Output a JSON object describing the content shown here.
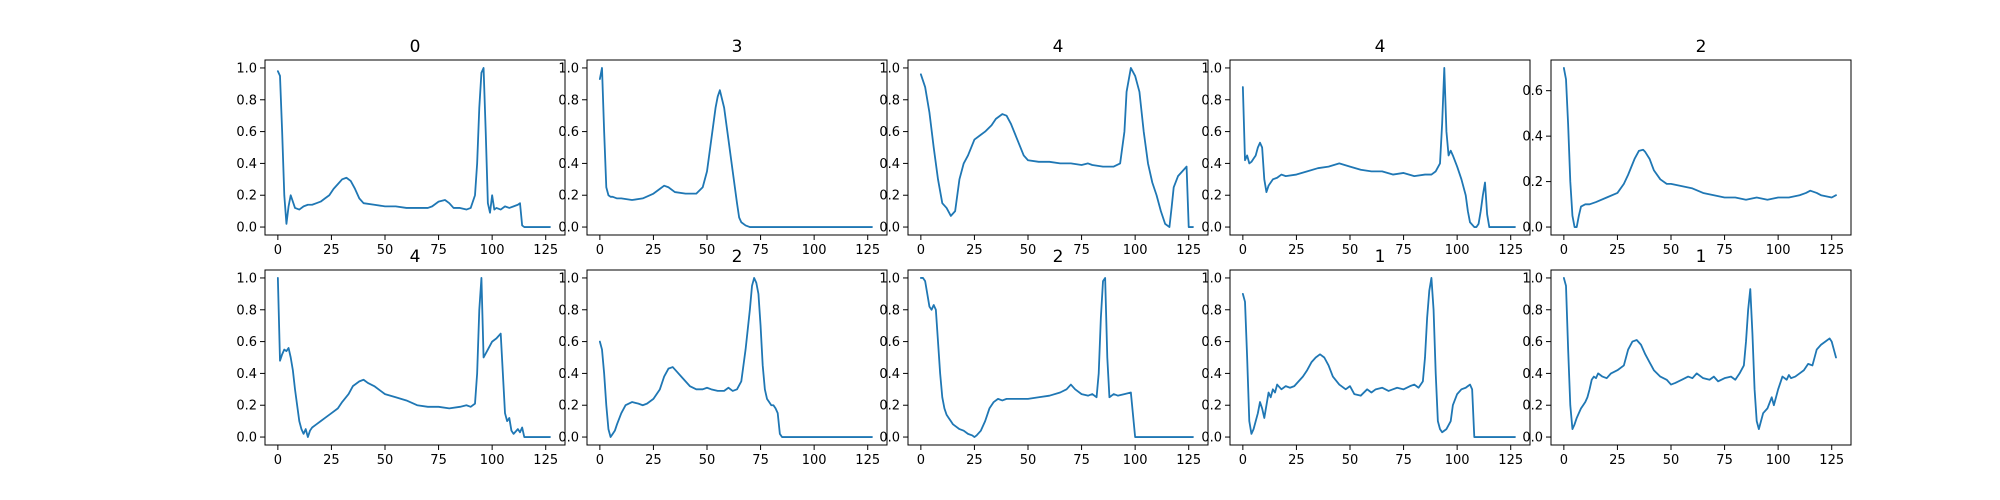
{
  "theme": {
    "line_color": "#1f77b4"
  },
  "chart_data": [
    {
      "type": "line",
      "title": "0",
      "xlim": [
        -6,
        134
      ],
      "ylim": [
        -0.05,
        1.05
      ],
      "xticks": [
        0,
        25,
        50,
        75,
        100,
        125
      ],
      "yticks": [
        0.0,
        0.2,
        0.4,
        0.6,
        0.8,
        1.0
      ],
      "x": [
        0,
        1,
        2,
        3,
        4,
        5,
        6,
        8,
        10,
        12,
        14,
        16,
        18,
        20,
        22,
        24,
        26,
        28,
        30,
        32,
        34,
        36,
        38,
        40,
        45,
        50,
        55,
        60,
        65,
        70,
        72,
        75,
        78,
        80,
        82,
        85,
        88,
        90,
        92,
        93,
        94,
        95,
        96,
        97,
        98,
        99,
        100,
        101,
        102,
        104,
        106,
        108,
        110,
        112,
        113,
        114,
        115,
        120,
        125,
        127
      ],
      "y": [
        0.98,
        0.95,
        0.6,
        0.2,
        0.02,
        0.13,
        0.2,
        0.12,
        0.11,
        0.13,
        0.14,
        0.14,
        0.15,
        0.16,
        0.18,
        0.2,
        0.24,
        0.27,
        0.3,
        0.31,
        0.29,
        0.24,
        0.18,
        0.15,
        0.14,
        0.13,
        0.13,
        0.12,
        0.12,
        0.12,
        0.13,
        0.16,
        0.17,
        0.15,
        0.12,
        0.12,
        0.11,
        0.12,
        0.2,
        0.4,
        0.75,
        0.97,
        1.0,
        0.6,
        0.15,
        0.09,
        0.2,
        0.11,
        0.12,
        0.11,
        0.13,
        0.12,
        0.13,
        0.14,
        0.15,
        0.01,
        0.0,
        0.0,
        0.0,
        0.0
      ]
    },
    {
      "type": "line",
      "title": "3",
      "xlim": [
        -6,
        134
      ],
      "ylim": [
        -0.05,
        1.05
      ],
      "xticks": [
        0,
        25,
        50,
        75,
        100,
        125
      ],
      "yticks": [
        0.0,
        0.2,
        0.4,
        0.6,
        0.8,
        1.0
      ],
      "x": [
        0,
        1,
        2,
        3,
        4,
        5,
        6,
        8,
        10,
        15,
        20,
        25,
        28,
        30,
        32,
        35,
        40,
        45,
        48,
        50,
        52,
        54,
        55,
        56,
        58,
        60,
        62,
        64,
        65,
        66,
        68,
        70,
        75,
        80,
        90,
        100,
        110,
        120,
        127
      ],
      "y": [
        0.93,
        1.0,
        0.6,
        0.25,
        0.2,
        0.19,
        0.19,
        0.18,
        0.18,
        0.17,
        0.18,
        0.21,
        0.24,
        0.26,
        0.25,
        0.22,
        0.21,
        0.21,
        0.25,
        0.35,
        0.55,
        0.75,
        0.82,
        0.86,
        0.75,
        0.55,
        0.35,
        0.15,
        0.06,
        0.03,
        0.01,
        0.0,
        0.0,
        0.0,
        0.0,
        0.0,
        0.0,
        0.0,
        0.0
      ]
    },
    {
      "type": "line",
      "title": "4",
      "xlim": [
        -6,
        134
      ],
      "ylim": [
        -0.05,
        1.05
      ],
      "xticks": [
        0,
        25,
        50,
        75,
        100,
        125
      ],
      "yticks": [
        0.0,
        0.2,
        0.4,
        0.6,
        0.8,
        1.0
      ],
      "x": [
        0,
        2,
        4,
        6,
        8,
        10,
        12,
        14,
        16,
        18,
        20,
        22,
        25,
        28,
        30,
        33,
        35,
        38,
        40,
        42,
        45,
        48,
        50,
        55,
        60,
        65,
        70,
        75,
        78,
        80,
        85,
        90,
        93,
        95,
        96,
        98,
        100,
        102,
        104,
        106,
        108,
        110,
        112,
        114,
        116,
        117,
        118,
        120,
        122,
        124,
        125,
        127
      ],
      "y": [
        0.96,
        0.88,
        0.72,
        0.5,
        0.3,
        0.15,
        0.12,
        0.07,
        0.1,
        0.3,
        0.4,
        0.45,
        0.55,
        0.58,
        0.6,
        0.64,
        0.68,
        0.71,
        0.7,
        0.65,
        0.55,
        0.45,
        0.42,
        0.41,
        0.41,
        0.4,
        0.4,
        0.39,
        0.4,
        0.39,
        0.38,
        0.38,
        0.4,
        0.6,
        0.85,
        1.0,
        0.95,
        0.85,
        0.6,
        0.4,
        0.28,
        0.2,
        0.1,
        0.02,
        0.0,
        0.12,
        0.25,
        0.32,
        0.35,
        0.38,
        0.0,
        0.0
      ]
    },
    {
      "type": "line",
      "title": "4",
      "xlim": [
        -6,
        134
      ],
      "ylim": [
        -0.05,
        1.05
      ],
      "xticks": [
        0,
        25,
        50,
        75,
        100,
        125
      ],
      "yticks": [
        0.0,
        0.2,
        0.4,
        0.6,
        0.8,
        1.0
      ],
      "x": [
        0,
        1,
        2,
        3,
        4,
        5,
        6,
        7,
        8,
        9,
        10,
        11,
        12,
        13,
        14,
        16,
        18,
        20,
        25,
        30,
        35,
        40,
        45,
        50,
        55,
        60,
        65,
        70,
        75,
        80,
        85,
        88,
        90,
        92,
        93,
        94,
        95,
        96,
        97,
        98,
        100,
        102,
        104,
        105,
        106,
        108,
        109,
        110,
        111,
        112,
        113,
        114,
        115,
        120,
        125,
        127
      ],
      "y": [
        0.88,
        0.42,
        0.45,
        0.4,
        0.41,
        0.43,
        0.45,
        0.5,
        0.53,
        0.5,
        0.3,
        0.22,
        0.26,
        0.28,
        0.3,
        0.31,
        0.33,
        0.32,
        0.33,
        0.35,
        0.37,
        0.38,
        0.4,
        0.38,
        0.36,
        0.35,
        0.35,
        0.33,
        0.34,
        0.32,
        0.33,
        0.33,
        0.35,
        0.4,
        0.65,
        1.0,
        0.6,
        0.45,
        0.48,
        0.45,
        0.38,
        0.3,
        0.2,
        0.1,
        0.03,
        0.0,
        0.0,
        0.02,
        0.1,
        0.2,
        0.28,
        0.08,
        0.0,
        0.0,
        0.0,
        0.0
      ]
    },
    {
      "type": "line",
      "title": "2",
      "xlim": [
        -6,
        134
      ],
      "ylim": [
        -0.035,
        0.735
      ],
      "xticks": [
        0,
        25,
        50,
        75,
        100,
        125
      ],
      "yticks": [
        0.0,
        0.2,
        0.4,
        0.6
      ],
      "x": [
        0,
        1,
        2,
        3,
        4,
        5,
        6,
        7,
        8,
        10,
        12,
        15,
        20,
        25,
        28,
        30,
        33,
        35,
        37,
        38,
        40,
        42,
        45,
        48,
        50,
        55,
        60,
        65,
        70,
        75,
        80,
        85,
        90,
        95,
        100,
        105,
        110,
        113,
        115,
        118,
        120,
        125,
        127
      ],
      "y": [
        0.7,
        0.65,
        0.45,
        0.2,
        0.05,
        0.0,
        0.0,
        0.05,
        0.09,
        0.1,
        0.1,
        0.11,
        0.13,
        0.15,
        0.19,
        0.23,
        0.3,
        0.335,
        0.34,
        0.33,
        0.3,
        0.25,
        0.21,
        0.19,
        0.19,
        0.18,
        0.17,
        0.15,
        0.14,
        0.13,
        0.13,
        0.12,
        0.13,
        0.12,
        0.13,
        0.13,
        0.14,
        0.15,
        0.16,
        0.15,
        0.14,
        0.13,
        0.14
      ]
    },
    {
      "type": "line",
      "title": "4",
      "xlim": [
        -6,
        134
      ],
      "ylim": [
        -0.05,
        1.05
      ],
      "xticks": [
        0,
        25,
        50,
        75,
        100,
        125
      ],
      "yticks": [
        0.0,
        0.2,
        0.4,
        0.6,
        0.8,
        1.0
      ],
      "x": [
        0,
        1,
        2,
        3,
        4,
        5,
        6,
        7,
        8,
        9,
        10,
        11,
        12,
        13,
        14,
        15,
        16,
        18,
        20,
        22,
        25,
        28,
        30,
        33,
        35,
        38,
        40,
        42,
        45,
        48,
        50,
        55,
        60,
        65,
        70,
        75,
        80,
        85,
        88,
        90,
        92,
        93,
        94,
        95,
        96,
        98,
        100,
        102,
        104,
        105,
        106,
        107,
        108,
        109,
        110,
        112,
        113,
        114,
        115,
        120,
        125,
        127
      ],
      "y": [
        1.0,
        0.48,
        0.52,
        0.55,
        0.54,
        0.56,
        0.5,
        0.42,
        0.3,
        0.2,
        0.1,
        0.05,
        0.02,
        0.05,
        0.0,
        0.04,
        0.06,
        0.08,
        0.1,
        0.12,
        0.15,
        0.18,
        0.22,
        0.27,
        0.32,
        0.35,
        0.36,
        0.34,
        0.32,
        0.29,
        0.27,
        0.25,
        0.23,
        0.2,
        0.19,
        0.19,
        0.18,
        0.19,
        0.2,
        0.19,
        0.21,
        0.4,
        0.8,
        1.0,
        0.5,
        0.55,
        0.6,
        0.62,
        0.65,
        0.4,
        0.15,
        0.1,
        0.12,
        0.04,
        0.02,
        0.05,
        0.03,
        0.06,
        0.0,
        0.0,
        0.0,
        0.0
      ]
    },
    {
      "type": "line",
      "title": "2",
      "xlim": [
        -6,
        134
      ],
      "ylim": [
        -0.05,
        1.05
      ],
      "xticks": [
        0,
        25,
        50,
        75,
        100,
        125
      ],
      "yticks": [
        0.0,
        0.2,
        0.4,
        0.6,
        0.8,
        1.0
      ],
      "x": [
        0,
        1,
        2,
        3,
        4,
        5,
        6,
        7,
        8,
        10,
        12,
        15,
        18,
        20,
        22,
        25,
        28,
        30,
        32,
        34,
        36,
        38,
        40,
        42,
        45,
        48,
        50,
        52,
        55,
        58,
        60,
        62,
        64,
        66,
        68,
        70,
        71,
        72,
        73,
        74,
        75,
        76,
        77,
        78,
        79,
        80,
        81,
        82,
        83,
        84,
        85,
        90,
        100,
        110,
        120,
        127
      ],
      "y": [
        0.6,
        0.55,
        0.4,
        0.2,
        0.05,
        0.0,
        0.02,
        0.04,
        0.08,
        0.15,
        0.2,
        0.22,
        0.21,
        0.2,
        0.21,
        0.24,
        0.3,
        0.38,
        0.43,
        0.44,
        0.41,
        0.38,
        0.35,
        0.32,
        0.3,
        0.3,
        0.31,
        0.3,
        0.29,
        0.29,
        0.31,
        0.29,
        0.3,
        0.35,
        0.55,
        0.8,
        0.95,
        1.0,
        0.97,
        0.9,
        0.7,
        0.45,
        0.3,
        0.24,
        0.22,
        0.2,
        0.2,
        0.18,
        0.15,
        0.02,
        0.0,
        0.0,
        0.0,
        0.0,
        0.0,
        0.0
      ]
    },
    {
      "type": "line",
      "title": "2",
      "xlim": [
        -6,
        134
      ],
      "ylim": [
        -0.05,
        1.05
      ],
      "xticks": [
        0,
        25,
        50,
        75,
        100,
        125
      ],
      "yticks": [
        0.0,
        0.2,
        0.4,
        0.6,
        0.8,
        1.0
      ],
      "x": [
        0,
        1,
        2,
        3,
        4,
        5,
        6,
        7,
        8,
        9,
        10,
        11,
        12,
        13,
        14,
        15,
        16,
        18,
        20,
        22,
        24,
        25,
        26,
        28,
        30,
        32,
        34,
        36,
        38,
        40,
        45,
        50,
        55,
        60,
        65,
        68,
        70,
        72,
        75,
        78,
        80,
        82,
        83,
        84,
        85,
        86,
        87,
        88,
        90,
        92,
        95,
        98,
        100,
        105,
        110,
        115,
        120,
        125,
        127
      ],
      "y": [
        1.0,
        1.0,
        0.98,
        0.9,
        0.82,
        0.8,
        0.83,
        0.8,
        0.6,
        0.4,
        0.25,
        0.18,
        0.14,
        0.12,
        0.1,
        0.08,
        0.07,
        0.05,
        0.04,
        0.02,
        0.01,
        0.0,
        0.01,
        0.04,
        0.1,
        0.18,
        0.22,
        0.24,
        0.23,
        0.24,
        0.24,
        0.24,
        0.25,
        0.26,
        0.28,
        0.3,
        0.33,
        0.3,
        0.27,
        0.26,
        0.27,
        0.25,
        0.4,
        0.75,
        0.98,
        1.0,
        0.5,
        0.25,
        0.27,
        0.26,
        0.27,
        0.28,
        0.0,
        0.0,
        0.0,
        0.0,
        0.0,
        0.0,
        0.0
      ]
    },
    {
      "type": "line",
      "title": "1",
      "xlim": [
        -6,
        134
      ],
      "ylim": [
        -0.05,
        1.05
      ],
      "xticks": [
        0,
        25,
        50,
        75,
        100,
        125
      ],
      "yticks": [
        0.0,
        0.2,
        0.4,
        0.6,
        0.8,
        1.0
      ],
      "x": [
        0,
        1,
        2,
        3,
        4,
        5,
        6,
        7,
        8,
        9,
        10,
        11,
        12,
        13,
        14,
        15,
        16,
        18,
        20,
        22,
        24,
        26,
        28,
        30,
        32,
        34,
        36,
        38,
        40,
        42,
        45,
        48,
        50,
        52,
        55,
        58,
        60,
        62,
        65,
        68,
        70,
        72,
        75,
        78,
        80,
        82,
        84,
        85,
        86,
        87,
        88,
        89,
        90,
        91,
        92,
        93,
        95,
        97,
        98,
        100,
        102,
        104,
        105,
        106,
        107,
        108,
        110,
        115,
        120,
        125,
        127
      ],
      "y": [
        0.9,
        0.85,
        0.5,
        0.1,
        0.02,
        0.05,
        0.1,
        0.15,
        0.22,
        0.18,
        0.12,
        0.2,
        0.28,
        0.25,
        0.3,
        0.28,
        0.33,
        0.3,
        0.32,
        0.31,
        0.32,
        0.35,
        0.38,
        0.42,
        0.47,
        0.5,
        0.52,
        0.5,
        0.45,
        0.38,
        0.33,
        0.3,
        0.32,
        0.27,
        0.26,
        0.3,
        0.28,
        0.3,
        0.31,
        0.29,
        0.3,
        0.31,
        0.3,
        0.32,
        0.33,
        0.31,
        0.35,
        0.5,
        0.75,
        0.92,
        1.0,
        0.8,
        0.4,
        0.1,
        0.05,
        0.03,
        0.05,
        0.1,
        0.2,
        0.27,
        0.3,
        0.31,
        0.32,
        0.33,
        0.3,
        0.0,
        0.0,
        0.0,
        0.0,
        0.0,
        0.0
      ]
    },
    {
      "type": "line",
      "title": "1",
      "xlim": [
        -6,
        134
      ],
      "ylim": [
        -0.05,
        1.05
      ],
      "xticks": [
        0,
        25,
        50,
        75,
        100,
        125
      ],
      "yticks": [
        0.0,
        0.2,
        0.4,
        0.6,
        0.8,
        1.0
      ],
      "x": [
        0,
        1,
        2,
        3,
        4,
        5,
        6,
        7,
        8,
        9,
        10,
        11,
        12,
        13,
        14,
        15,
        16,
        18,
        20,
        22,
        25,
        28,
        30,
        32,
        34,
        36,
        38,
        40,
        42,
        45,
        48,
        50,
        52,
        55,
        58,
        60,
        62,
        65,
        68,
        70,
        72,
        75,
        78,
        80,
        82,
        84,
        85,
        86,
        87,
        88,
        89,
        90,
        91,
        92,
        93,
        95,
        97,
        98,
        100,
        102,
        104,
        105,
        106,
        108,
        110,
        112,
        114,
        116,
        118,
        120,
        122,
        124,
        125,
        126,
        127
      ],
      "y": [
        1.0,
        0.95,
        0.55,
        0.2,
        0.05,
        0.08,
        0.12,
        0.15,
        0.18,
        0.2,
        0.22,
        0.25,
        0.3,
        0.36,
        0.38,
        0.37,
        0.4,
        0.38,
        0.37,
        0.4,
        0.42,
        0.45,
        0.55,
        0.6,
        0.61,
        0.58,
        0.52,
        0.47,
        0.42,
        0.38,
        0.36,
        0.33,
        0.34,
        0.36,
        0.38,
        0.37,
        0.4,
        0.37,
        0.36,
        0.38,
        0.35,
        0.37,
        0.38,
        0.36,
        0.4,
        0.45,
        0.6,
        0.8,
        0.93,
        0.65,
        0.3,
        0.1,
        0.05,
        0.1,
        0.15,
        0.18,
        0.25,
        0.2,
        0.3,
        0.38,
        0.36,
        0.39,
        0.37,
        0.38,
        0.4,
        0.42,
        0.46,
        0.45,
        0.55,
        0.58,
        0.6,
        0.62,
        0.6,
        0.55,
        0.5
      ]
    }
  ]
}
